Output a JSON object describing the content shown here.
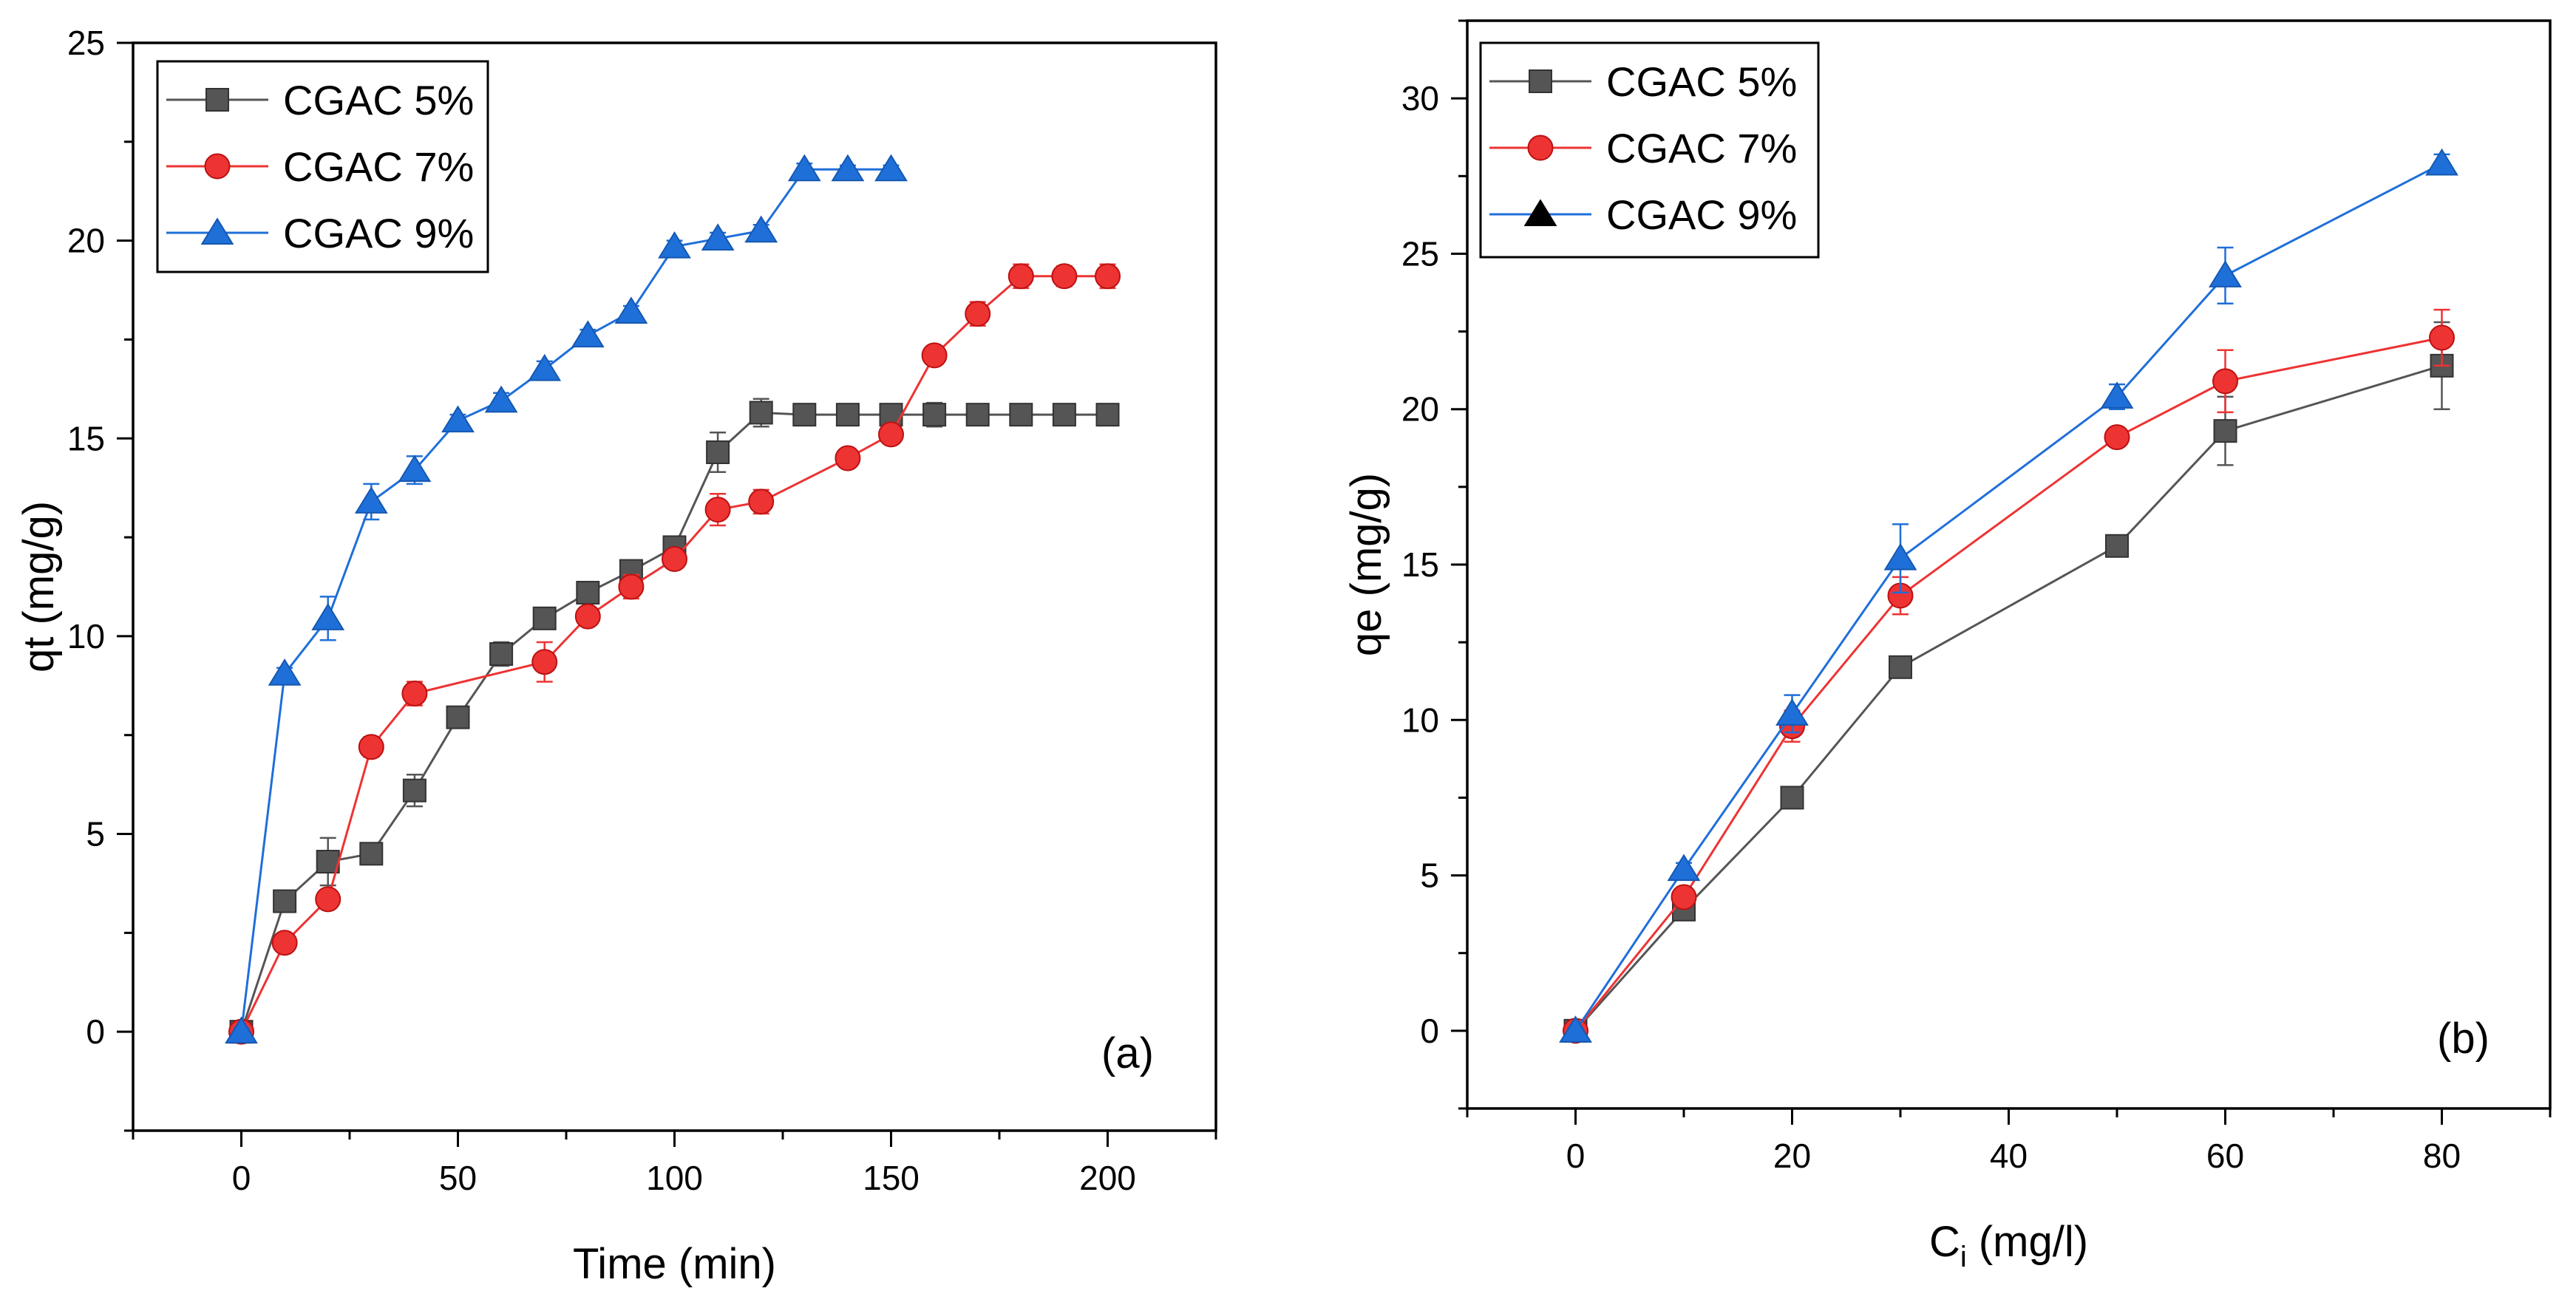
{
  "chart_data": [
    {
      "panel": "a",
      "type": "line",
      "panel_label": "(a)",
      "title": "",
      "xlabel": "Time (min)",
      "ylabel": "qt (mg/g)",
      "xlim": [
        -25,
        225
      ],
      "ylim": [
        -2.5,
        25
      ],
      "xticks": [
        0,
        50,
        100,
        150,
        200
      ],
      "yticks": [
        0,
        5,
        10,
        15,
        20,
        25
      ],
      "legend_position": "top-left",
      "series": [
        {
          "name": "CGAC 5%",
          "marker": "square",
          "color": "#555555",
          "x": [
            0,
            10,
            20,
            30,
            40,
            50,
            60,
            70,
            80,
            90,
            100,
            110,
            120,
            130,
            140,
            150,
            160,
            170,
            180,
            190,
            200
          ],
          "y": [
            0,
            3.3,
            4.3,
            4.5,
            6.1,
            7.95,
            9.55,
            10.45,
            11.1,
            11.65,
            12.25,
            14.65,
            15.65,
            15.6,
            15.6,
            15.6,
            15.6,
            15.6,
            15.6,
            15.6,
            15.6
          ],
          "err": [
            0.1,
            0.2,
            0.6,
            0.2,
            0.4,
            0.2,
            0.3,
            0.2,
            0.2,
            0.2,
            0.25,
            0.5,
            0.35,
            0.15,
            0.15,
            0.2,
            0.3,
            0.15,
            0.15,
            0.15,
            0.15
          ]
        },
        {
          "name": "CGAC 7%",
          "marker": "circle",
          "color": "#ee3333",
          "x": [
            0,
            10,
            20,
            30,
            40,
            70,
            80,
            90,
            100,
            110,
            120,
            140,
            150,
            160,
            170,
            180,
            190,
            200
          ],
          "y": [
            0,
            2.25,
            3.35,
            7.2,
            8.55,
            9.35,
            10.5,
            11.25,
            11.95,
            13.2,
            13.4,
            14.5,
            15.1,
            17.1,
            18.15,
            19.1,
            19.1,
            19.1
          ],
          "err": [
            0.1,
            0.15,
            0.2,
            0.25,
            0.3,
            0.5,
            0.2,
            0.3,
            0.2,
            0.4,
            0.3,
            0.2,
            0.2,
            0.2,
            0.3,
            0.3,
            0.25,
            0.3
          ]
        },
        {
          "name": "CGAC 9%",
          "marker": "triangle",
          "color": "#1f6fd9",
          "x": [
            0,
            10,
            20,
            30,
            40,
            50,
            60,
            70,
            80,
            90,
            100,
            110,
            120,
            130,
            140,
            150
          ],
          "y": [
            0,
            9.05,
            10.45,
            13.4,
            14.2,
            15.45,
            15.95,
            16.75,
            17.6,
            18.2,
            19.85,
            20.05,
            20.25,
            21.8,
            21.8,
            21.8
          ],
          "err": [
            0.1,
            0.15,
            0.55,
            0.45,
            0.35,
            0.15,
            0.2,
            0.2,
            0.15,
            0.15,
            0.15,
            0.15,
            0.15,
            0.15,
            0.1,
            0.1
          ]
        }
      ]
    },
    {
      "panel": "b",
      "type": "line",
      "panel_label": "(b)",
      "title": "",
      "xlabel_main": "C",
      "xlabel_sub": "i",
      "xlabel_rest": " (mg/l)",
      "ylabel": "qe (mg/g)",
      "xlim": [
        -10,
        90
      ],
      "ylim": [
        -2.5,
        32.5
      ],
      "xticks": [
        0,
        20,
        40,
        60,
        80
      ],
      "yticks": [
        0,
        5,
        10,
        15,
        20,
        25,
        30
      ],
      "legend_position": "top-left",
      "series": [
        {
          "name": "CGAC 5%",
          "marker": "square",
          "color": "#555555",
          "legend_color": "#555555",
          "x": [
            0,
            10,
            20,
            30,
            50,
            60,
            80
          ],
          "y": [
            0,
            3.9,
            7.5,
            11.7,
            15.6,
            19.3,
            21.4
          ],
          "err": [
            0.1,
            0.2,
            0.3,
            0.2,
            0.2,
            1.1,
            1.4
          ]
        },
        {
          "name": "CGAC 7%",
          "marker": "circle",
          "color": "#ee3333",
          "legend_color": "#ee3333",
          "x": [
            0,
            10,
            20,
            30,
            50,
            60,
            80
          ],
          "y": [
            0,
            4.3,
            9.8,
            14.0,
            19.1,
            20.9,
            22.3
          ],
          "err": [
            0.1,
            0.2,
            0.5,
            0.6,
            0.2,
            1.0,
            0.9
          ]
        },
        {
          "name": "CGAC 9%",
          "marker": "triangle",
          "color": "#1f6fd9",
          "legend_color": "#000000",
          "x": [
            0,
            10,
            20,
            30,
            50,
            60,
            80
          ],
          "y": [
            0,
            5.2,
            10.2,
            15.2,
            20.4,
            24.3,
            27.9
          ],
          "err": [
            0.1,
            0.2,
            0.6,
            1.1,
            0.4,
            0.9,
            0.3
          ]
        }
      ]
    }
  ]
}
